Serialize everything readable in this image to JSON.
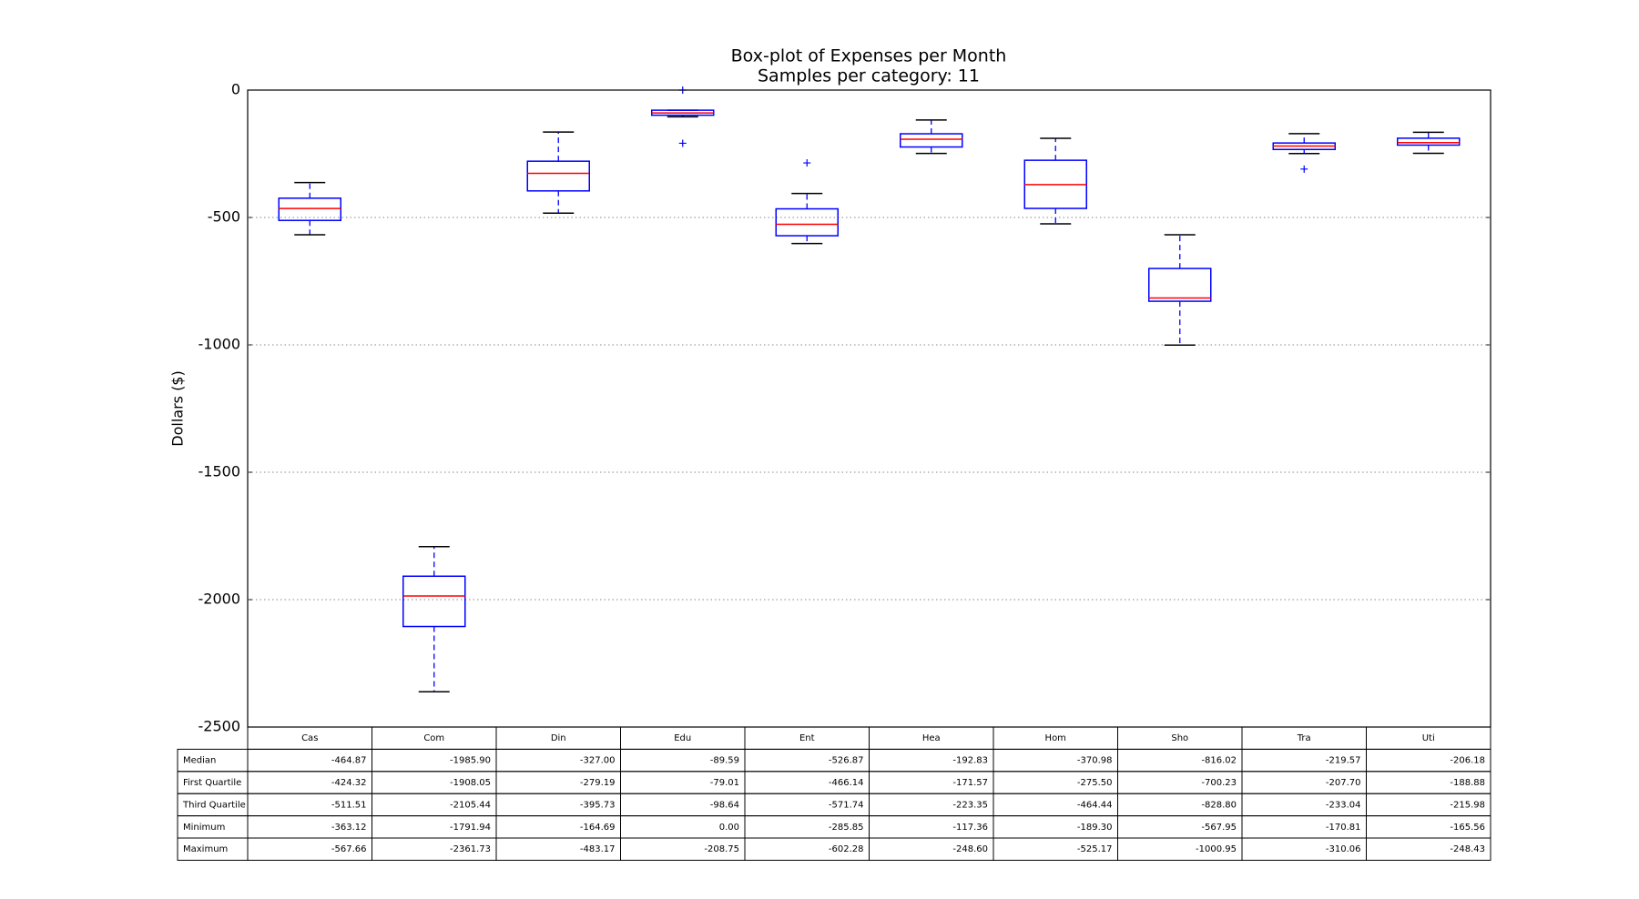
{
  "chart_data": {
    "type": "box",
    "title": "Box-plot of Expenses per Month",
    "subtitle": "Samples per category: 11",
    "y_label": "Dollars ($)",
    "categories": [
      "Cas",
      "Com",
      "Din",
      "Edu",
      "Ent",
      "Hea",
      "Hom",
      "Sho",
      "Tra",
      "Uti"
    ],
    "ylim": [
      -2500,
      0
    ],
    "yticks": [
      0,
      -500,
      -1000,
      -1500,
      -2000,
      -2500
    ],
    "grid": true,
    "box_color": "#0000ff",
    "median_color": "#ff0000",
    "cap_color": "#000000",
    "rows": [
      {
        "label": "Median",
        "values": [
          -464.87,
          -1985.9,
          -327.0,
          -89.59,
          -526.87,
          -192.83,
          -370.98,
          -816.02,
          -219.57,
          -206.18
        ],
        "value_labels": [
          "-464.87",
          "-1985.90",
          "-327.00",
          "-89.59",
          "-526.87",
          "-192.83",
          "-370.98",
          "-816.02",
          "-219.57",
          "-206.18"
        ]
      },
      {
        "label": "First Quartile",
        "values": [
          -424.32,
          -1908.05,
          -279.19,
          -79.01,
          -466.14,
          -171.57,
          -275.5,
          -700.23,
          -207.7,
          -188.88
        ],
        "value_labels": [
          "-424.32",
          "-1908.05",
          "-279.19",
          "-79.01",
          "-466.14",
          "-171.57",
          "-275.50",
          "-700.23",
          "-207.70",
          "-188.88"
        ]
      },
      {
        "label": "Third Quartile",
        "values": [
          -511.51,
          -2105.44,
          -395.73,
          -98.64,
          -571.74,
          -223.35,
          -464.44,
          -828.8,
          -233.04,
          -215.98
        ],
        "value_labels": [
          "-511.51",
          "-2105.44",
          "-395.73",
          "-98.64",
          "-571.74",
          "-223.35",
          "-464.44",
          "-828.80",
          "-233.04",
          "-215.98"
        ]
      },
      {
        "label": "Minimum",
        "values": [
          -363.12,
          -1791.94,
          -164.69,
          0.0,
          -285.85,
          -117.36,
          -189.3,
          -567.95,
          -170.81,
          -165.56
        ],
        "value_labels": [
          "-363.12",
          "-1791.94",
          "-164.69",
          "0.00",
          "-285.85",
          "-117.36",
          "-189.30",
          "-567.95",
          "-170.81",
          "-165.56"
        ]
      },
      {
        "label": "Maximum",
        "values": [
          -567.66,
          -2361.73,
          -483.17,
          -208.75,
          -602.28,
          -248.6,
          -525.17,
          -1000.95,
          -310.06,
          -248.43
        ],
        "value_labels": [
          "-567.66",
          "-2361.73",
          "-483.17",
          "-208.75",
          "-602.28",
          "-248.60",
          "-525.17",
          "-1000.95",
          "-310.06",
          "-248.43"
        ]
      }
    ],
    "whiskers": [
      [
        -363.12,
        -567.66
      ],
      [
        -1791.94,
        -2361.73
      ],
      [
        -164.69,
        -483.17
      ],
      [
        -79.01,
        -105
      ],
      [
        -406,
        -602.28
      ],
      [
        -117.36,
        -248.6
      ],
      [
        -189.3,
        -525.17
      ],
      [
        -567.95,
        -1000.95
      ],
      [
        -170.81,
        -249
      ],
      [
        -165.56,
        -248.43
      ]
    ],
    "fliers": [
      [],
      [],
      [],
      [
        0.0,
        -208.75
      ],
      [
        -285.85
      ],
      [],
      [],
      [],
      [
        -310.06
      ],
      []
    ]
  }
}
